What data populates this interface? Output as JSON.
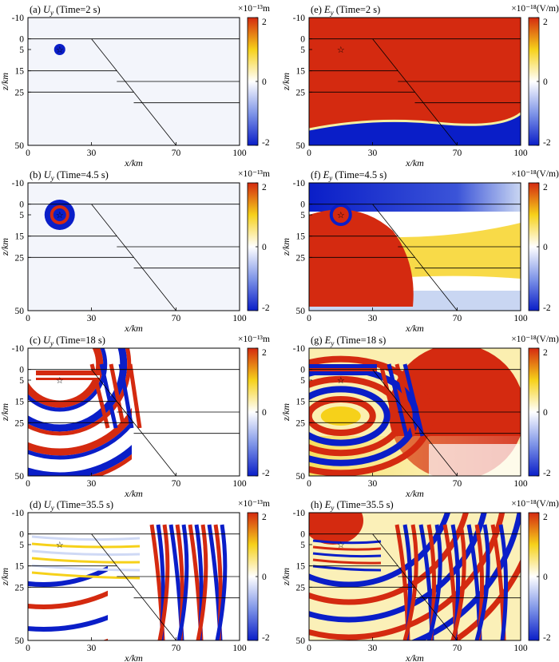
{
  "figure": {
    "colors": {
      "red": "#d42a10",
      "blue": "#0a1ec8",
      "yellow": "#f6d11a",
      "white": "#ffffff",
      "pale": "#f3f5fb",
      "lightblue": "#c9d6f2"
    },
    "axis": {
      "xlabel": "x/km",
      "ylabel": "z/km",
      "xticks": [
        "0",
        "30",
        "70",
        "100"
      ],
      "yticks": [
        "-10",
        "0",
        "5",
        "15",
        "25",
        "50"
      ],
      "colorbar_ticks": [
        "2",
        "0",
        "-2"
      ]
    }
  },
  "chart_data": [
    {
      "id": "a",
      "type": "heatmap",
      "title": "(a) U_y (Time=2 s)",
      "field": "Uy",
      "title_prefix": "(a)",
      "title_symbol": "U",
      "title_sub": "y",
      "title_time": "(Time=2 s)",
      "unit": "×10⁻¹³m",
      "time_s": 2,
      "xlim": [
        0,
        100
      ],
      "ylim": [
        -10,
        50
      ],
      "clim": [
        -2,
        2
      ],
      "layer_interfaces_km": [
        0,
        15,
        25
      ],
      "fault_trace": [
        [
          30,
          0
        ],
        [
          70,
          50
        ]
      ]
    },
    {
      "id": "e",
      "type": "heatmap",
      "title": "(e) E_y (Time=2 s)",
      "field": "Ey",
      "title_prefix": "(e)",
      "title_symbol": "E",
      "title_sub": "y",
      "title_time": "(Time=2 s)",
      "unit": "×10⁻¹⁸(V/m)",
      "time_s": 2,
      "xlim": [
        0,
        100
      ],
      "ylim": [
        -10,
        50
      ],
      "clim": [
        -2,
        2
      ],
      "layer_interfaces_km": [
        0,
        15,
        25
      ],
      "fault_trace": [
        [
          30,
          0
        ],
        [
          70,
          50
        ]
      ]
    },
    {
      "id": "b",
      "type": "heatmap",
      "title": "(b) U_y (Time=4.5 s)",
      "field": "Uy",
      "title_prefix": "(b)",
      "title_symbol": "U",
      "title_sub": "y",
      "title_time": "(Time=4.5 s)",
      "unit": "×10⁻¹³m",
      "time_s": 4.5,
      "xlim": [
        0,
        100
      ],
      "ylim": [
        -10,
        50
      ],
      "clim": [
        -2,
        2
      ],
      "layer_interfaces_km": [
        0,
        15,
        25
      ],
      "fault_trace": [
        [
          30,
          0
        ],
        [
          70,
          50
        ]
      ]
    },
    {
      "id": "f",
      "type": "heatmap",
      "title": "(f) E_y (Time=4.5 s)",
      "field": "Ey",
      "title_prefix": "(f)",
      "title_symbol": "E",
      "title_sub": "y",
      "title_time": "(Time=4.5 s)",
      "unit": "×10⁻¹⁸(V/m)",
      "time_s": 4.5,
      "xlim": [
        0,
        100
      ],
      "ylim": [
        -10,
        50
      ],
      "clim": [
        -2,
        2
      ],
      "layer_interfaces_km": [
        0,
        15,
        25
      ],
      "fault_trace": [
        [
          30,
          0
        ],
        [
          70,
          50
        ]
      ]
    },
    {
      "id": "c",
      "type": "heatmap",
      "title": "(c) U_y (Time=18 s)",
      "field": "Uy",
      "title_prefix": "(c)",
      "title_symbol": "U",
      "title_sub": "y",
      "title_time": "(Time=18 s)",
      "unit": "×10⁻¹³m",
      "time_s": 18,
      "xlim": [
        0,
        100
      ],
      "ylim": [
        -10,
        50
      ],
      "clim": [
        -2,
        2
      ],
      "layer_interfaces_km": [
        0,
        15,
        25
      ],
      "fault_trace": [
        [
          30,
          0
        ],
        [
          70,
          50
        ]
      ]
    },
    {
      "id": "g",
      "type": "heatmap",
      "title": "(g) E_y (Time=18 s)",
      "field": "Ey",
      "title_prefix": "(g)",
      "title_symbol": "E",
      "title_sub": "y",
      "title_time": "(Time=18 s)",
      "unit": "×10⁻¹⁸(V/m)",
      "time_s": 18,
      "xlim": [
        0,
        100
      ],
      "ylim": [
        -10,
        50
      ],
      "clim": [
        -2,
        2
      ],
      "layer_interfaces_km": [
        0,
        15,
        25
      ],
      "fault_trace": [
        [
          30,
          0
        ],
        [
          70,
          50
        ]
      ]
    },
    {
      "id": "d",
      "type": "heatmap",
      "title": "(d) U_y (Time=35.5 s)",
      "field": "Uy",
      "title_prefix": "(d)",
      "title_symbol": "U",
      "title_sub": "y",
      "title_time": "(Time=35.5 s)",
      "unit": "×10⁻¹³m",
      "time_s": 35.5,
      "xlim": [
        0,
        100
      ],
      "ylim": [
        -10,
        50
      ],
      "clim": [
        -2,
        2
      ],
      "layer_interfaces_km": [
        0,
        15,
        25
      ],
      "fault_trace": [
        [
          30,
          0
        ],
        [
          70,
          50
        ]
      ]
    },
    {
      "id": "h",
      "type": "heatmap",
      "title": "(h) E_y (Time=35.5 s)",
      "field": "Ey",
      "title_prefix": "(h)",
      "title_symbol": "E",
      "title_sub": "y",
      "title_time": "(Time=35.5 s)",
      "unit": "×10⁻¹⁸(V/m)",
      "time_s": 35.5,
      "xlim": [
        0,
        100
      ],
      "ylim": [
        -10,
        50
      ],
      "clim": [
        -2,
        2
      ],
      "layer_interfaces_km": [
        0,
        15,
        25
      ],
      "fault_trace": [
        [
          30,
          0
        ],
        [
          70,
          50
        ]
      ]
    }
  ]
}
